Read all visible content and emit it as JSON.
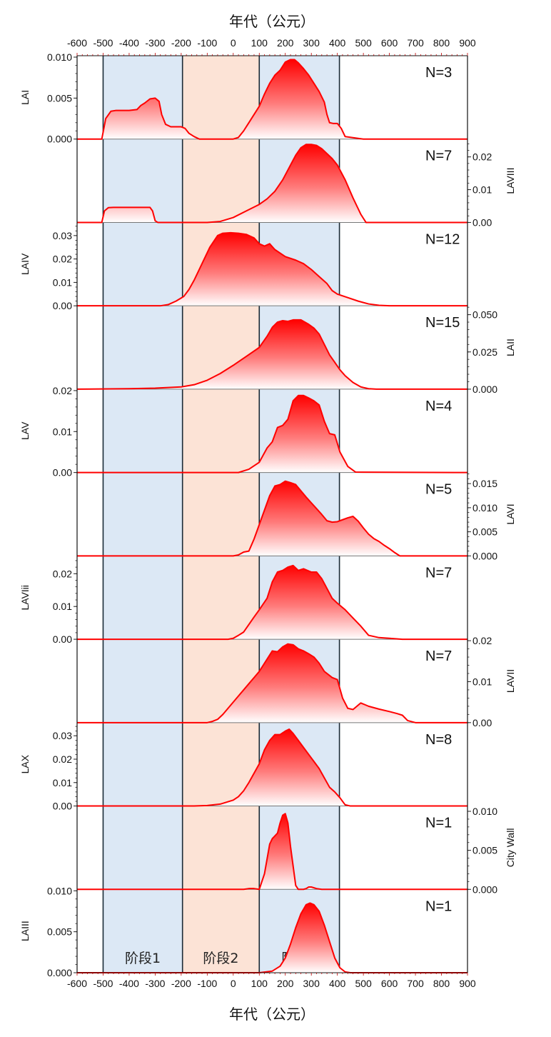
{
  "chart_data": {
    "type": "area",
    "title": "",
    "xlabel_top": "年代（公元）",
    "xlabel_bottom": "年代（公元）",
    "xlim": [
      -600,
      900
    ],
    "xticks": [
      -600,
      -500,
      -400,
      -300,
      -200,
      -100,
      0,
      100,
      200,
      300,
      400,
      500,
      600,
      700,
      800,
      900
    ],
    "xtick_labels": [
      "-600",
      "-500",
      "-400",
      "-300",
      "-200",
      "-100",
      "0",
      "100",
      "200",
      "300",
      "400",
      "500",
      "600",
      "700",
      "800",
      "900"
    ],
    "grid": false,
    "colors": {
      "curve": "#ff0000",
      "stage_blue": "#dce8f5",
      "stage_peach": "#fce3d6",
      "stage_border": "#1a2a36"
    },
    "stages": [
      {
        "label": "阶段1",
        "from": -500,
        "to": -195,
        "color": "blue"
      },
      {
        "label": "阶段2",
        "from": -195,
        "to": 100,
        "color": "peach"
      },
      {
        "label": "阶段3",
        "from": 100,
        "to": 408,
        "color": "blue"
      }
    ],
    "panels": [
      {
        "name": "LAI",
        "n_label": "N=3",
        "axis": "left",
        "ylim": [
          0,
          0.01
        ],
        "yticks": [
          0.0,
          0.005,
          0.01
        ],
        "ytick_labels": [
          "0.000",
          "0.005",
          "0.010"
        ],
        "x": [
          -600,
          -505,
          -490,
          -470,
          -450,
          -400,
          -370,
          -355,
          -340,
          -320,
          -300,
          -285,
          -275,
          -260,
          -240,
          -200,
          -185,
          -170,
          -150,
          -130,
          -100,
          -50,
          0,
          20,
          40,
          60,
          80,
          100,
          120,
          140,
          160,
          180,
          200,
          220,
          235,
          250,
          270,
          290,
          310,
          330,
          350,
          360,
          370,
          385,
          400,
          415,
          430,
          500,
          900
        ],
        "y": [
          0,
          0,
          0.0025,
          0.0034,
          0.0035,
          0.0035,
          0.0036,
          0.0041,
          0.0044,
          0.0049,
          0.005,
          0.0046,
          0.003,
          0.0018,
          0.0015,
          0.0015,
          0.0013,
          0.0007,
          0.0003,
          0.0,
          0,
          0,
          0,
          0.0002,
          0.001,
          0.002,
          0.003,
          0.004,
          0.0055,
          0.0068,
          0.0078,
          0.0084,
          0.0094,
          0.0097,
          0.0097,
          0.0093,
          0.0086,
          0.0078,
          0.0068,
          0.0058,
          0.0045,
          0.003,
          0.002,
          0.0019,
          0.0019,
          0.0013,
          0.0003,
          0,
          0
        ]
      },
      {
        "name": "LAVIII",
        "n_label": "N=7",
        "axis": "right",
        "ylim": [
          0,
          0.025
        ],
        "yticks": [
          0.0,
          0.01,
          0.02
        ],
        "ytick_labels": [
          "0.00",
          "0.01",
          "0.02"
        ],
        "x": [
          -600,
          -505,
          -495,
          -480,
          -460,
          -400,
          -350,
          -320,
          -310,
          -300,
          -290,
          -200,
          -100,
          -50,
          0,
          50,
          100,
          130,
          160,
          190,
          220,
          240,
          260,
          280,
          300,
          320,
          340,
          360,
          380,
          400,
          430,
          460,
          490,
          510,
          900
        ],
        "y": [
          0,
          0,
          0.0035,
          0.0045,
          0.0046,
          0.0046,
          0.0046,
          0.0046,
          0.0035,
          0.0005,
          0,
          0,
          0,
          0.0003,
          0.0015,
          0.0035,
          0.0055,
          0.0072,
          0.0095,
          0.013,
          0.0175,
          0.0205,
          0.0228,
          0.0238,
          0.0238,
          0.0235,
          0.0225,
          0.021,
          0.0195,
          0.0175,
          0.013,
          0.0075,
          0.0025,
          0,
          0
        ]
      },
      {
        "name": "LAIV",
        "n_label": "N=12",
        "axis": "left",
        "ylim": [
          0,
          0.035
        ],
        "yticks": [
          0.0,
          0.01,
          0.02,
          0.03
        ],
        "ytick_labels": [
          "0.00",
          "0.01",
          "0.02",
          "0.03"
        ],
        "x": [
          -600,
          -280,
          -250,
          -220,
          -190,
          -170,
          -150,
          -120,
          -90,
          -60,
          -40,
          -10,
          20,
          50,
          80,
          100,
          120,
          140,
          160,
          200,
          240,
          270,
          300,
          330,
          360,
          380,
          400,
          440,
          480,
          520,
          560,
          600,
          900
        ],
        "y": [
          0,
          0,
          0.0005,
          0.002,
          0.004,
          0.007,
          0.011,
          0.018,
          0.025,
          0.03,
          0.031,
          0.0312,
          0.031,
          0.0305,
          0.029,
          0.0265,
          0.0255,
          0.0265,
          0.024,
          0.021,
          0.0195,
          0.018,
          0.0155,
          0.0125,
          0.0095,
          0.0065,
          0.005,
          0.0035,
          0.002,
          0.0008,
          0.0002,
          0,
          0
        ]
      },
      {
        "name": "LAII",
        "n_label": "N=15",
        "axis": "right",
        "ylim": [
          0,
          0.055
        ],
        "yticks": [
          0.0,
          0.025,
          0.05
        ],
        "ytick_labels": [
          "0.000",
          "0.025",
          "0.050"
        ],
        "x": [
          -600,
          -400,
          -300,
          -200,
          -150,
          -100,
          -50,
          0,
          50,
          100,
          130,
          150,
          170,
          190,
          210,
          230,
          260,
          290,
          310,
          330,
          350,
          370,
          390,
          410,
          430,
          460,
          490,
          520,
          550,
          900
        ],
        "y": [
          0,
          0.0003,
          0.0007,
          0.0015,
          0.003,
          0.006,
          0.0105,
          0.016,
          0.022,
          0.028,
          0.0355,
          0.0415,
          0.045,
          0.046,
          0.0455,
          0.0465,
          0.0465,
          0.0435,
          0.041,
          0.037,
          0.03,
          0.023,
          0.018,
          0.013,
          0.009,
          0.0045,
          0.0015,
          0.0003,
          0,
          0
        ]
      },
      {
        "name": "LAV",
        "n_label": "N=4",
        "axis": "left",
        "ylim": [
          0,
          0.02
        ],
        "yticks": [
          0.0,
          0.01,
          0.02
        ],
        "ytick_labels": [
          "0.00",
          "0.01",
          "0.02"
        ],
        "x": [
          -600,
          20,
          60,
          100,
          130,
          150,
          170,
          190,
          210,
          230,
          250,
          270,
          290,
          310,
          330,
          350,
          370,
          390,
          410,
          440,
          470,
          900
        ],
        "y": [
          0,
          0,
          0.0008,
          0.0025,
          0.006,
          0.0075,
          0.011,
          0.0115,
          0.013,
          0.0175,
          0.0188,
          0.0188,
          0.0182,
          0.0175,
          0.0165,
          0.0125,
          0.0095,
          0.0092,
          0.005,
          0.0015,
          0.0001,
          0
        ]
      },
      {
        "name": "LAVI",
        "n_label": "N=5",
        "axis": "right",
        "ylim": [
          0,
          0.017
        ],
        "yticks": [
          0.0,
          0.005,
          0.01,
          0.015
        ],
        "ytick_labels": [
          "0.000",
          "0.005",
          "0.010",
          "0.015"
        ],
        "x": [
          -600,
          0,
          20,
          40,
          60,
          80,
          100,
          120,
          140,
          160,
          180,
          200,
          220,
          240,
          260,
          280,
          300,
          320,
          340,
          360,
          380,
          400,
          420,
          440,
          460,
          480,
          500,
          520,
          540,
          560,
          580,
          600,
          620,
          640,
          900
        ],
        "y": [
          0,
          0,
          0.0002,
          0.0008,
          0.001,
          0.0035,
          0.0065,
          0.0095,
          0.0125,
          0.0145,
          0.0148,
          0.0155,
          0.0152,
          0.0148,
          0.0135,
          0.0122,
          0.011,
          0.0098,
          0.0086,
          0.0073,
          0.007,
          0.0071,
          0.0075,
          0.0079,
          0.0082,
          0.0072,
          0.0058,
          0.0045,
          0.0036,
          0.003,
          0.0022,
          0.0015,
          0.0007,
          0,
          0
        ]
      },
      {
        "name": "LAVIii",
        "n_label": "N=7",
        "axis": "left",
        "ylim": [
          0,
          0.025
        ],
        "yticks": [
          0.0,
          0.01,
          0.02
        ],
        "ytick_labels": [
          "0.00",
          "0.01",
          "0.02"
        ],
        "x": [
          -600,
          -20,
          0,
          20,
          40,
          60,
          80,
          100,
          130,
          150,
          170,
          190,
          210,
          230,
          250,
          270,
          300,
          320,
          340,
          360,
          380,
          400,
          430,
          460,
          490,
          520,
          560,
          600,
          650,
          900
        ],
        "y": [
          0,
          0,
          0.0003,
          0.0012,
          0.0022,
          0.0045,
          0.0068,
          0.009,
          0.0125,
          0.0175,
          0.0205,
          0.021,
          0.022,
          0.0225,
          0.021,
          0.0215,
          0.0205,
          0.0205,
          0.0185,
          0.0155,
          0.0125,
          0.011,
          0.009,
          0.0065,
          0.004,
          0.0012,
          0.0005,
          0.0003,
          0,
          0
        ]
      },
      {
        "name": "LAVII",
        "n_label": "N=7",
        "axis": "right",
        "ylim": [
          0,
          0.02
        ],
        "yticks": [
          0.0,
          0.01,
          0.02
        ],
        "ytick_labels": [
          "0.00",
          "0.01",
          "0.02"
        ],
        "x": [
          -600,
          -100,
          -80,
          -60,
          -40,
          -20,
          0,
          20,
          40,
          60,
          80,
          100,
          120,
          150,
          170,
          190,
          210,
          230,
          250,
          270,
          290,
          310,
          330,
          350,
          380,
          400,
          420,
          440,
          460,
          490,
          520,
          560,
          600,
          630,
          650,
          670,
          700,
          900
        ],
        "y": [
          0,
          0,
          0.0003,
          0.0008,
          0.002,
          0.0035,
          0.005,
          0.0065,
          0.008,
          0.0095,
          0.011,
          0.0125,
          0.0145,
          0.0175,
          0.0173,
          0.0185,
          0.0192,
          0.019,
          0.018,
          0.0175,
          0.0168,
          0.016,
          0.0145,
          0.0125,
          0.011,
          0.0105,
          0.006,
          0.0035,
          0.0032,
          0.0048,
          0.004,
          0.0033,
          0.0027,
          0.0022,
          0.0018,
          0.0005,
          0,
          0
        ]
      },
      {
        "name": "LAX",
        "n_label": "N=8",
        "axis": "left",
        "ylim": [
          0,
          0.035
        ],
        "yticks": [
          0.0,
          0.01,
          0.02,
          0.03
        ],
        "ytick_labels": [
          "0.00",
          "0.01",
          "0.02",
          "0.03"
        ],
        "x": [
          -600,
          -150,
          -100,
          -50,
          0,
          20,
          40,
          60,
          80,
          100,
          120,
          140,
          160,
          180,
          200,
          215,
          230,
          250,
          270,
          290,
          310,
          330,
          350,
          370,
          390,
          410,
          430,
          450,
          900
        ],
        "y": [
          0,
          0,
          0.0002,
          0.0008,
          0.0025,
          0.004,
          0.0065,
          0.01,
          0.014,
          0.018,
          0.024,
          0.028,
          0.0305,
          0.0305,
          0.032,
          0.0328,
          0.031,
          0.028,
          0.025,
          0.022,
          0.019,
          0.016,
          0.012,
          0.008,
          0.006,
          0.0035,
          0.0005,
          0,
          0
        ]
      },
      {
        "name": "City Wall",
        "n_label": "N=1",
        "axis": "right",
        "ylim": [
          0,
          0.0105
        ],
        "yticks": [
          0.0,
          0.005,
          0.01
        ],
        "ytick_labels": [
          "0.000",
          "0.005",
          "0.010"
        ],
        "x": [
          -600,
          40,
          60,
          80,
          100,
          120,
          140,
          150,
          170,
          180,
          190,
          200,
          210,
          220,
          240,
          250,
          270,
          280,
          290,
          300,
          320,
          340,
          360,
          900
        ],
        "y": [
          0,
          0,
          0.0001,
          0.0001,
          0,
          0.002,
          0.0058,
          0.0065,
          0.0072,
          0.0085,
          0.0095,
          0.0097,
          0.0085,
          0.0055,
          0.0005,
          0,
          0,
          0.0001,
          0.0003,
          0.0003,
          0.0001,
          0,
          0,
          0
        ]
      },
      {
        "name": "LAIII",
        "n_label": "N=1",
        "axis": "left",
        "ylim": [
          0,
          0.01
        ],
        "yticks": [
          0.0,
          0.005,
          0.01
        ],
        "ytick_labels": [
          "0.000",
          "0.005",
          "0.010"
        ],
        "x": [
          -600,
          100,
          150,
          180,
          200,
          220,
          240,
          260,
          280,
          295,
          310,
          330,
          350,
          370,
          390,
          410,
          430,
          450,
          900
        ],
        "y": [
          0,
          0,
          0.0002,
          0.0008,
          0.0018,
          0.0035,
          0.0055,
          0.0072,
          0.0083,
          0.0085,
          0.0083,
          0.0075,
          0.0058,
          0.0038,
          0.0018,
          0.0006,
          0.0001,
          0,
          0
        ]
      }
    ]
  }
}
